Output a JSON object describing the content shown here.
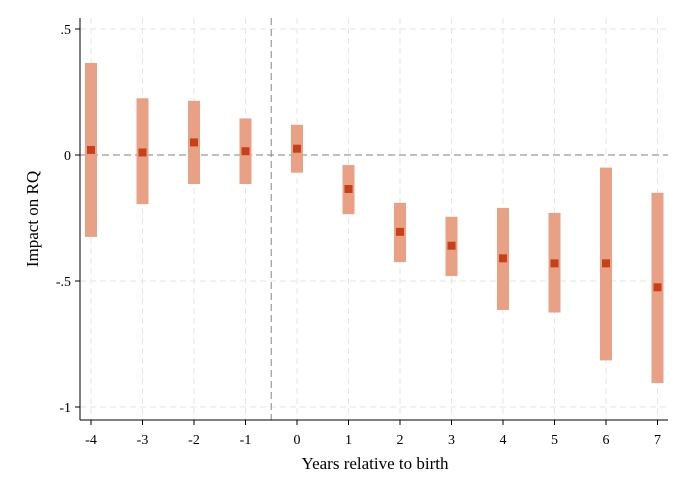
{
  "chart_data": {
    "type": "coefficient_plot",
    "xlabel": "Years relative to birth",
    "ylabel": "Impact on RQ",
    "ylim": [
      -1.05,
      0.55
    ],
    "y_ticks": [
      0.5,
      0,
      -0.5,
      -1
    ],
    "y_tick_labels": [
      ".5",
      "0",
      "-.5",
      "-1"
    ],
    "x": [
      -4,
      -3,
      -2,
      -1,
      0,
      1,
      2,
      3,
      4,
      5,
      6,
      7
    ],
    "x_tick_labels": [
      "-4",
      "-3",
      "-2",
      "-1",
      "0",
      "1",
      "2",
      "3",
      "4",
      "5",
      "6",
      "7"
    ],
    "estimates": [
      0.02,
      0.01,
      0.05,
      0.015,
      0.025,
      -0.135,
      -0.305,
      -0.36,
      -0.41,
      -0.43,
      -0.43,
      -0.525
    ],
    "ci_upper": [
      0.365,
      0.225,
      0.215,
      0.145,
      0.12,
      -0.04,
      -0.19,
      -0.245,
      -0.21,
      -0.23,
      -0.05,
      -0.15
    ],
    "ci_lower": [
      -0.325,
      -0.195,
      -0.115,
      -0.115,
      -0.07,
      -0.235,
      -0.425,
      -0.48,
      -0.615,
      -0.625,
      -0.815,
      -0.905
    ],
    "reference_lines": {
      "horizontal_y": 0,
      "vertical_x": -0.5
    },
    "colors": {
      "ci": "#e8a184",
      "estimate": "#c8401a",
      "reference": "#999999"
    },
    "grid": true
  }
}
